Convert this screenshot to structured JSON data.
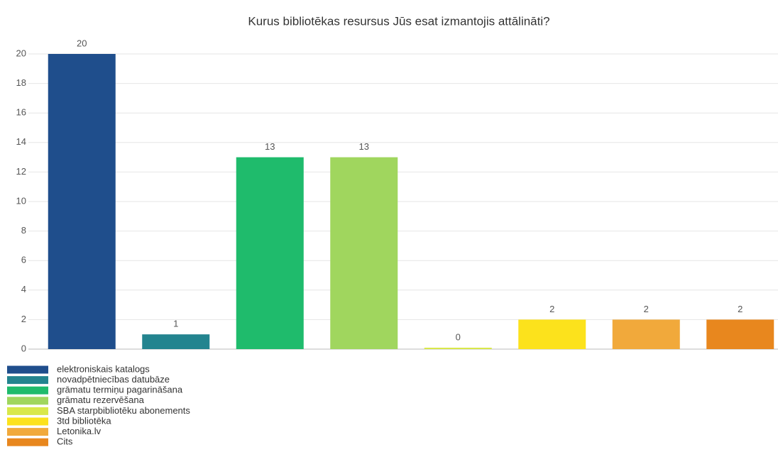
{
  "chart_data": {
    "type": "bar",
    "title": "Kurus bibliotēkas resursus Jūs esat izmantojis attālināti?",
    "categories": [
      "elektroniskais katalogs",
      "novadpētniecības datubāze",
      "grāmatu termiņu pagarināšana",
      "grāmatu rezervēšana",
      "SBA starpbibliotēku abonements",
      "3td bibliotēka",
      "Letonika.lv",
      "Cits"
    ],
    "values": [
      20,
      1,
      13,
      13,
      0,
      2,
      2,
      2
    ],
    "colors": [
      "#1f4e8c",
      "#23848f",
      "#1fbb6c",
      "#a0d65e",
      "#d9e84a",
      "#fce21c",
      "#f1a93b",
      "#e8871e"
    ],
    "ylim": [
      0,
      20
    ],
    "yticks": [
      0,
      2,
      4,
      6,
      8,
      10,
      12,
      14,
      16,
      18,
      20
    ],
    "grid": true
  }
}
